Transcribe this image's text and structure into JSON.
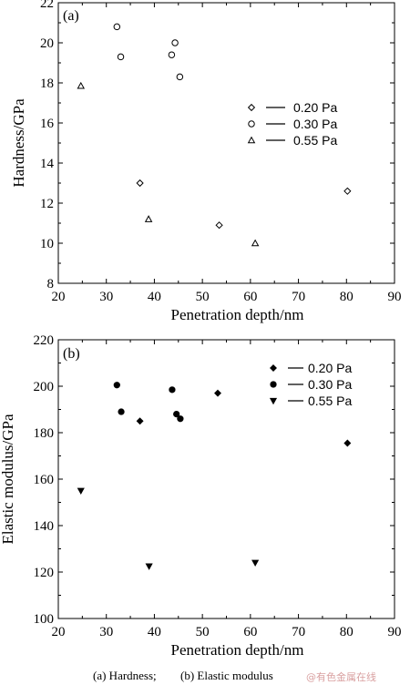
{
  "chart_data": [
    {
      "type": "scatter",
      "panel_label": "(a)",
      "xlabel": "Penetration depth/nm",
      "ylabel": "Hardness/GPa",
      "xlim": [
        20,
        90
      ],
      "ylim": [
        8,
        22
      ],
      "xticks": [
        20,
        30,
        40,
        50,
        60,
        70,
        80,
        90
      ],
      "yticks": [
        8,
        10,
        12,
        14,
        16,
        18,
        20,
        22
      ],
      "grid": false,
      "legend_position": "right",
      "series": [
        {
          "name": "0.20 Pa",
          "marker": "diamond-open",
          "x": [
            37,
            53.5,
            80.2
          ],
          "y": [
            13.0,
            10.9,
            12.6
          ]
        },
        {
          "name": "0.30 Pa",
          "marker": "circle-open",
          "x": [
            32.2,
            33.0,
            43.6,
            44.3,
            45.3
          ],
          "y": [
            20.8,
            19.3,
            19.4,
            20.0,
            18.3
          ]
        },
        {
          "name": "0.55 Pa",
          "marker": "triangle-open",
          "x": [
            24.7,
            38.8,
            61.0
          ],
          "y": [
            17.85,
            11.2,
            10.0
          ]
        }
      ]
    },
    {
      "type": "scatter",
      "panel_label": "(b)",
      "xlabel": "Penetration depth/nm",
      "ylabel": "Elastic modulus/GPa",
      "xlim": [
        20,
        90
      ],
      "ylim": [
        100,
        220
      ],
      "xticks": [
        20,
        30,
        40,
        50,
        60,
        70,
        80,
        90
      ],
      "yticks": [
        100,
        120,
        140,
        160,
        180,
        200,
        220
      ],
      "grid": false,
      "legend_position": "top-right",
      "series": [
        {
          "name": "0.20 Pa",
          "marker": "diamond-filled",
          "x": [
            37,
            53.2,
            80.2
          ],
          "y": [
            185,
            197,
            175.5
          ]
        },
        {
          "name": "0.30 Pa",
          "marker": "circle-filled",
          "x": [
            32.2,
            33.1,
            43.7,
            44.6,
            45.4
          ],
          "y": [
            200.5,
            189,
            198.5,
            188,
            186
          ]
        },
        {
          "name": "0.55 Pa",
          "marker": "triangle-down-filled",
          "x": [
            24.7,
            38.9,
            61.0
          ],
          "y": [
            155,
            122.5,
            124
          ]
        }
      ]
    }
  ],
  "caption": {
    "part_a": "(a)  Hardness;",
    "part_b": "(b)  Elastic  modulus"
  },
  "watermark": "@有色金属在线",
  "colors": {
    "ink": "#000000",
    "watermark": "#d9a0a0"
  }
}
